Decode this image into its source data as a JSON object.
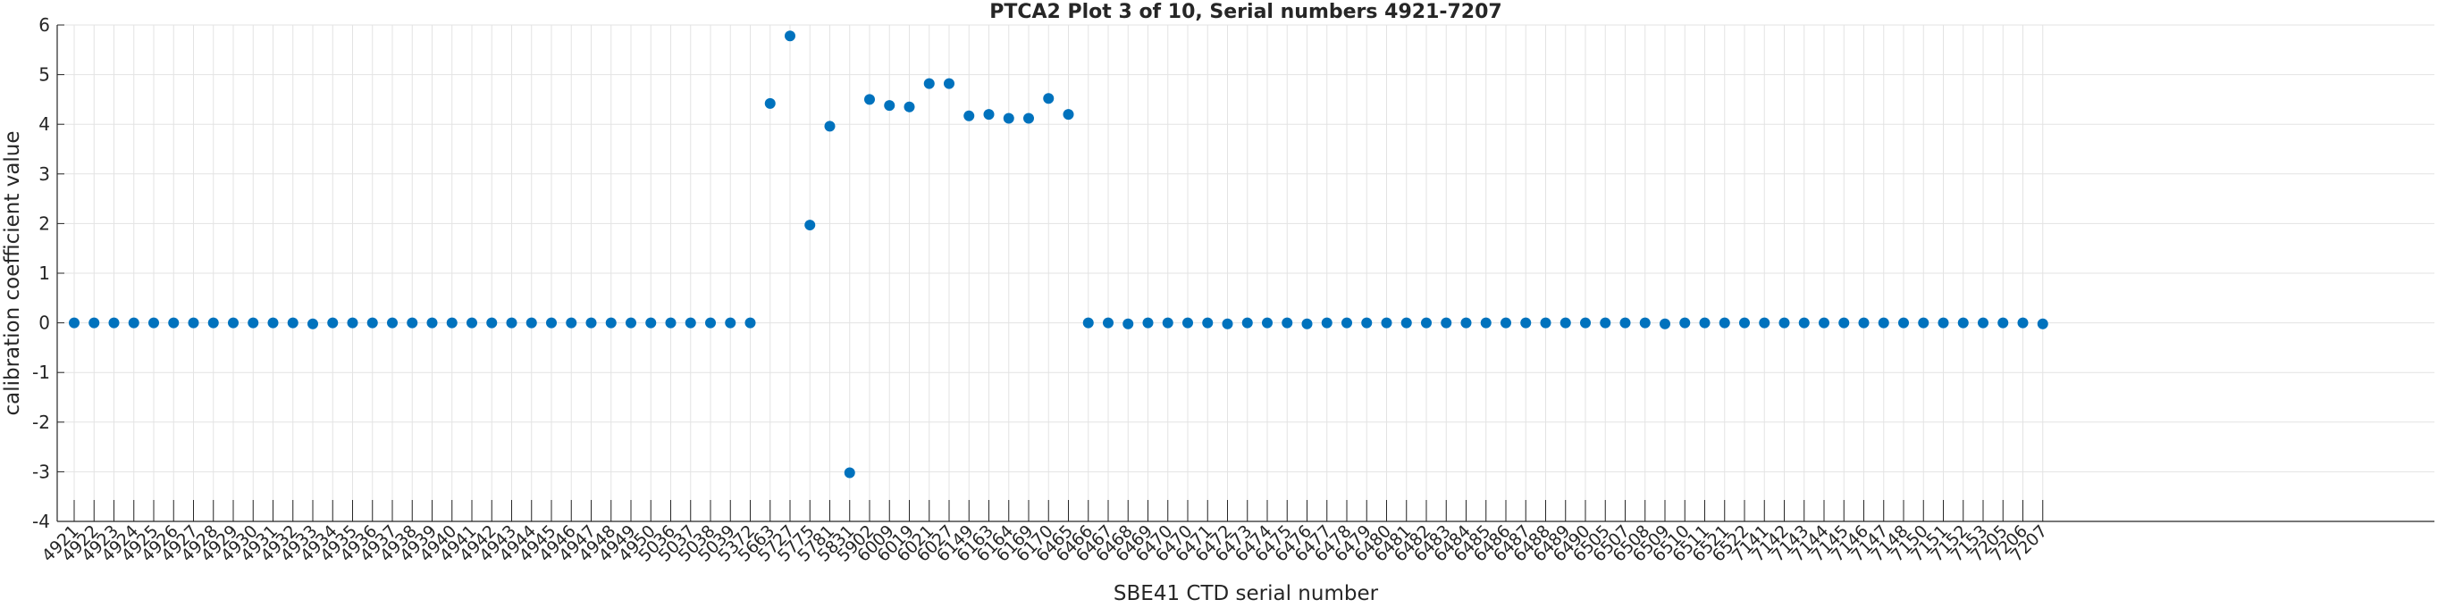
{
  "chart_data": {
    "type": "scatter",
    "title": "PTCA2 Plot 3 of 10, Serial numbers 4921-7207",
    "xlabel": "SBE41 CTD serial number",
    "ylabel": "calibration coefficient value",
    "ylim": [
      -4,
      6
    ],
    "yticks": [
      -4,
      -3,
      -2,
      -1,
      0,
      1,
      2,
      3,
      4,
      5,
      6
    ],
    "grid": true,
    "marker_color": "#0072BD",
    "categories": [
      "4921",
      "4922",
      "4923",
      "4924",
      "4925",
      "4926",
      "4927",
      "4928",
      "4929",
      "4930",
      "4931",
      "4932",
      "4933",
      "4934",
      "4935",
      "4936",
      "4937",
      "4938",
      "4939",
      "4940",
      "4941",
      "4942",
      "4943",
      "4944",
      "4945",
      "4946",
      "4947",
      "4948",
      "4949",
      "4950",
      "5036",
      "5037",
      "5038",
      "5039",
      "5372",
      "5663",
      "5727",
      "5775",
      "5781",
      "5831",
      "5902",
      "6009",
      "6019",
      "6021",
      "6027",
      "6149",
      "6163",
      "6164",
      "6169",
      "6170",
      "6465",
      "6466",
      "6467",
      "6468",
      "6469",
      "6470",
      "6470",
      "6471",
      "6472",
      "6473",
      "6474",
      "6475",
      "6476",
      "6477",
      "6478",
      "6479",
      "6480",
      "6481",
      "6482",
      "6483",
      "6484",
      "6485",
      "6486",
      "6487",
      "6488",
      "6489",
      "6490",
      "6505",
      "6507",
      "6508",
      "6509",
      "6510",
      "6511",
      "6521",
      "6522",
      "7141",
      "7142",
      "7143",
      "7144",
      "7145",
      "7146",
      "7147",
      "7148",
      "7150",
      "7151",
      "7152",
      "7153",
      "7205",
      "7206",
      "7207"
    ],
    "values": [
      0.0,
      0.0,
      0.0,
      0.0,
      0.0,
      0.0,
      0.0,
      0.0,
      0.0,
      0.0,
      0.0,
      0.0,
      -0.02,
      0.0,
      0.0,
      0.0,
      0.0,
      0.0,
      0.0,
      0.0,
      0.0,
      0.0,
      0.0,
      0.0,
      0.0,
      0.0,
      0.0,
      0.0,
      0.0,
      0.0,
      0.0,
      0.0,
      0.0,
      0.0,
      0.0,
      4.42,
      5.78,
      1.97,
      3.96,
      -3.02,
      4.5,
      4.38,
      4.35,
      4.82,
      4.82,
      4.17,
      4.2,
      4.12,
      4.12,
      4.52,
      4.2,
      0.0,
      0.0,
      -0.02,
      0.0,
      0.0,
      0.0,
      0.0,
      -0.02,
      0.0,
      0.0,
      0.0,
      -0.02,
      0.0,
      0.0,
      0.0,
      0.0,
      0.0,
      0.0,
      0.0,
      0.0,
      0.0,
      0.0,
      0.0,
      0.0,
      0.0,
      0.0,
      0.0,
      0.0,
      0.0,
      -0.02,
      0.0,
      0.0,
      0.0,
      0.0,
      0.0,
      0.0,
      0.0,
      0.0,
      0.0,
      0.0,
      0.0,
      0.0,
      0.0,
      0.0,
      0.0,
      0.0,
      0.0,
      0.0,
      -0.02
    ]
  }
}
